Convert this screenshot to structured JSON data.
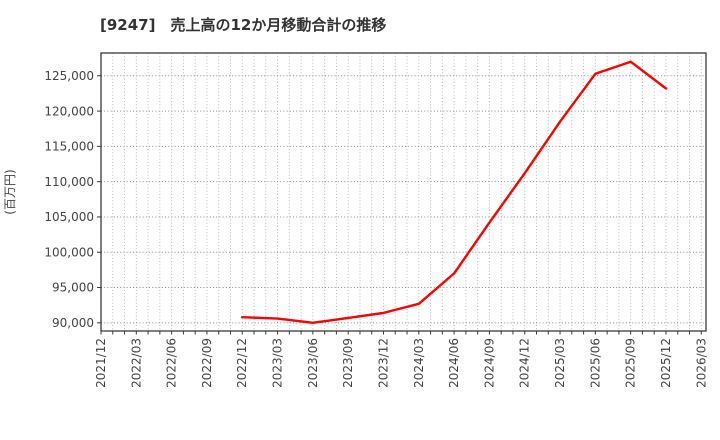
{
  "chart": {
    "title": "[9247]　売上高の12か月移動合計の推移",
    "y_axis_label": "(百万円)",
    "colors": {
      "line": "#ff0000",
      "h_grid": "#8c8c8c",
      "v_grid": "#b3b3b3",
      "border": "#3a3a3a",
      "tick_text": "#444444",
      "title_text": "#333333"
    }
  },
  "chart_data": {
    "type": "line",
    "title": "[9247]　売上高の12か月移動合計の推移",
    "xlabel": "",
    "ylabel": "(百万円)",
    "grid": true,
    "legend": false,
    "y_ticks": [
      90000,
      95000,
      100000,
      105000,
      110000,
      115000,
      120000,
      125000
    ],
    "ylim": [
      88840,
      128230
    ],
    "x_tick_labels": [
      "2021/12",
      "2022/03",
      "2022/06",
      "2022/09",
      "2022/12",
      "2023/03",
      "2023/06",
      "2023/09",
      "2023/12",
      "2024/03",
      "2024/06",
      "2024/09",
      "2024/12",
      "2025/03",
      "2025/06",
      "2025/09",
      "2025/12",
      "2026/03"
    ],
    "series": [
      {
        "name": "売上高の12か月移動合計",
        "x": [
          "2022/12",
          "2023/03",
          "2023/06",
          "2023/09",
          "2023/12",
          "2024/03",
          "2024/06",
          "2024/09",
          "2024/12",
          "2025/03",
          "2025/06",
          "2025/09",
          "2025/12"
        ],
        "values": [
          90800,
          90600,
          90000,
          90700,
          91400,
          92700,
          97000,
          104200,
          111200,
          118500,
          125300,
          127000,
          123200
        ]
      }
    ]
  }
}
